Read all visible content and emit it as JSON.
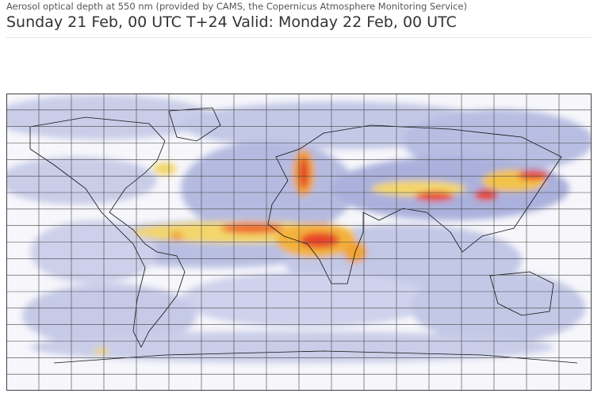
{
  "header": {
    "subtitle": "Aerosol optical depth at 550 nm (provided by CAMS, the Copernicus Atmosphere Monitoring Service)",
    "title": "Sunday 21 Feb, 00 UTC T+24 Valid: Monday 22 Feb, 00 UTC"
  }
}
